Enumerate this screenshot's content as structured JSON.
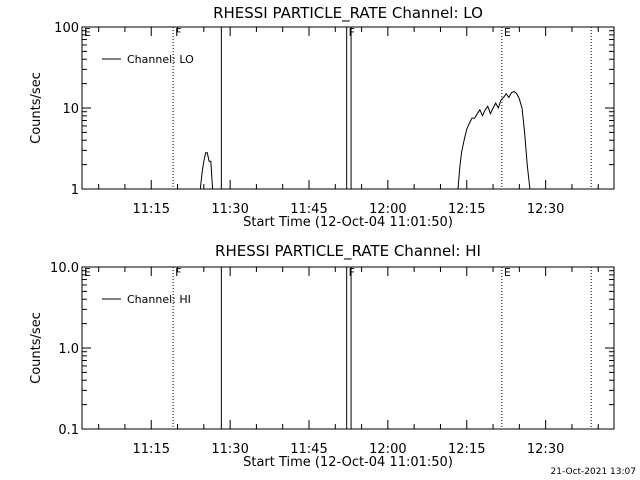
{
  "footer_date": "21-Oct-2021 13:07",
  "chart_data": [
    {
      "type": "line",
      "title": "RHESSI PARTICLE_RATE Channel: LO",
      "xlabel": "Start Time (12-Oct-04 11:01:50)",
      "ylabel": "Counts/sec",
      "y_scale": "log",
      "ylim": [
        1,
        100
      ],
      "xlim": [
        "11:01:50",
        "12:43:00"
      ],
      "x_ticks": [
        "11:15",
        "11:30",
        "11:45",
        "12:00",
        "12:15",
        "12:30"
      ],
      "y_ticks": [
        "1",
        "10",
        "100"
      ],
      "legend": {
        "label": "Channel: LO",
        "placement": "top-left"
      },
      "markers": [
        {
          "time": "11:01:50",
          "label": "E",
          "style": "dotted"
        },
        {
          "time": "11:19:10",
          "label": "F",
          "style": "dotted"
        },
        {
          "time": "11:28:20",
          "label": "",
          "style": "solid"
        },
        {
          "time": "11:52:10",
          "label": "F",
          "style": "solid"
        },
        {
          "time": "11:53:00",
          "label": "",
          "style": "solid"
        },
        {
          "time": "12:21:40",
          "label": "E",
          "style": "dotted"
        },
        {
          "time": "12:38:40",
          "label": "",
          "style": "dotted"
        }
      ],
      "series": [
        {
          "name": "Channel: LO",
          "segments": [
            [
              [
                "11:24:20",
                1
              ],
              [
                "11:24:40",
                1.6
              ],
              [
                "11:25:00",
                2.2
              ],
              [
                "11:25:20",
                2.8
              ],
              [
                "11:25:40",
                2.8
              ],
              [
                "11:26:00",
                2.2
              ],
              [
                "11:26:20",
                2.2
              ],
              [
                "11:26:40",
                1
              ]
            ],
            [
              [
                "12:13:20",
                1
              ],
              [
                "12:13:40",
                1.8
              ],
              [
                "12:14:00",
                2.8
              ],
              [
                "12:14:30",
                4
              ],
              [
                "12:15:00",
                5.5
              ],
              [
                "12:15:30",
                6.5
              ],
              [
                "12:16:00",
                7.5
              ],
              [
                "12:16:30",
                7.5
              ],
              [
                "12:17:00",
                8.5
              ],
              [
                "12:17:30",
                9.5
              ],
              [
                "12:18:00",
                8.0
              ],
              [
                "12:18:30",
                9.5
              ],
              [
                "12:19:00",
                10.5
              ],
              [
                "12:19:30",
                8.5
              ],
              [
                "12:20:00",
                10.0
              ],
              [
                "12:20:30",
                11.5
              ],
              [
                "12:21:00",
                10.0
              ],
              [
                "12:21:30",
                12.5
              ],
              [
                "12:22:00",
                13.5
              ],
              [
                "12:22:30",
                15.0
              ],
              [
                "12:23:00",
                13.5
              ],
              [
                "12:23:30",
                15.5
              ],
              [
                "12:24:00",
                16.0
              ],
              [
                "12:24:30",
                15.0
              ],
              [
                "12:25:00",
                13.0
              ],
              [
                "12:25:30",
                10.0
              ],
              [
                "12:26:00",
                5.0
              ],
              [
                "12:26:30",
                2.0
              ],
              [
                "12:27:00",
                1
              ]
            ]
          ]
        }
      ]
    },
    {
      "type": "line",
      "title": "RHESSI PARTICLE_RATE Channel: HI",
      "xlabel": "Start Time (12-Oct-04 11:01:50)",
      "ylabel": "Counts/sec",
      "y_scale": "log",
      "ylim": [
        0.1,
        10
      ],
      "xlim": [
        "11:01:50",
        "12:43:00"
      ],
      "x_ticks": [
        "11:15",
        "11:30",
        "11:45",
        "12:00",
        "12:15",
        "12:30"
      ],
      "y_ticks": [
        "0.1",
        "1.0",
        "10.0"
      ],
      "legend": {
        "label": "Channel: HI",
        "placement": "top-left"
      },
      "markers": [
        {
          "time": "11:01:50",
          "label": "E",
          "style": "dotted"
        },
        {
          "time": "11:19:10",
          "label": "F",
          "style": "dotted"
        },
        {
          "time": "11:28:20",
          "label": "",
          "style": "solid"
        },
        {
          "time": "11:52:10",
          "label": "F",
          "style": "solid"
        },
        {
          "time": "11:53:00",
          "label": "",
          "style": "solid"
        },
        {
          "time": "12:21:40",
          "label": "E",
          "style": "dotted"
        },
        {
          "time": "12:38:40",
          "label": "",
          "style": "dotted"
        }
      ],
      "series": [
        {
          "name": "Channel: HI",
          "segments": []
        }
      ]
    }
  ]
}
